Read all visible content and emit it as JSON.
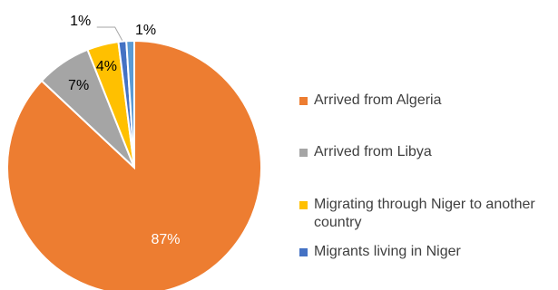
{
  "chart_data": {
    "type": "pie",
    "title": "",
    "slices": [
      {
        "label": "Arrived from Algeria",
        "value": 87,
        "display": "87%",
        "color": "#ED7D31"
      },
      {
        "label": "Arrived from Libya",
        "value": 7,
        "display": "7%",
        "color": "#A5A5A5"
      },
      {
        "label": "Migrating through Niger to another country",
        "value": 4,
        "display": "4%",
        "color": "#FFC000"
      },
      {
        "label": "Migrants living in Niger",
        "value": 1,
        "display": "1%",
        "color": "#4472C4"
      },
      {
        "label": "",
        "value": 1,
        "display": "1%",
        "color": "#5B9BD5"
      }
    ],
    "legend": {
      "position": "right",
      "entries": [
        {
          "label": "Arrived from Algeria",
          "color": "#ED7D31"
        },
        {
          "label": "Arrived from Libya",
          "color": "#A5A5A5"
        },
        {
          "label": "Migrating through Niger to another country",
          "color": "#FFC000"
        },
        {
          "label": "Migrants living in Niger",
          "color": "#4472C4"
        }
      ]
    }
  }
}
